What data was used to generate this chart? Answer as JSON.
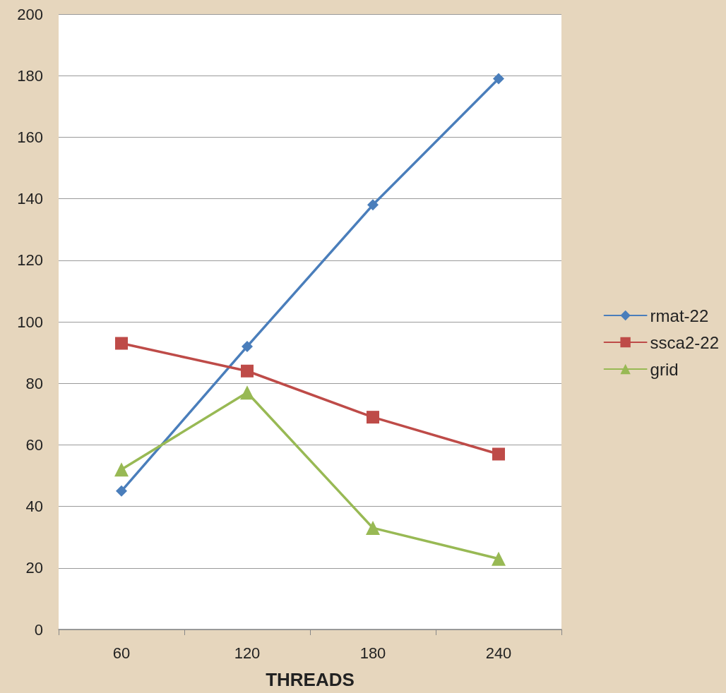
{
  "chart_data": {
    "type": "line",
    "xlabel": "THREADS",
    "categories": [
      "60",
      "120",
      "180",
      "240"
    ],
    "series": [
      {
        "name": "rmat-22",
        "color": "#4a7ebb",
        "marker": "diamond",
        "values": [
          45,
          92,
          138,
          179
        ]
      },
      {
        "name": "ssca2-22",
        "color": "#be4b48",
        "marker": "square",
        "values": [
          93,
          84,
          69,
          57
        ]
      },
      {
        "name": "grid",
        "color": "#98b954",
        "marker": "triangle",
        "values": [
          52,
          77,
          33,
          23
        ]
      }
    ],
    "ylim": [
      0,
      200
    ],
    "yticks": [
      0,
      20,
      40,
      60,
      80,
      100,
      120,
      140,
      160,
      180,
      200
    ],
    "grid": "y",
    "legend": "right",
    "line_style": "solid"
  }
}
